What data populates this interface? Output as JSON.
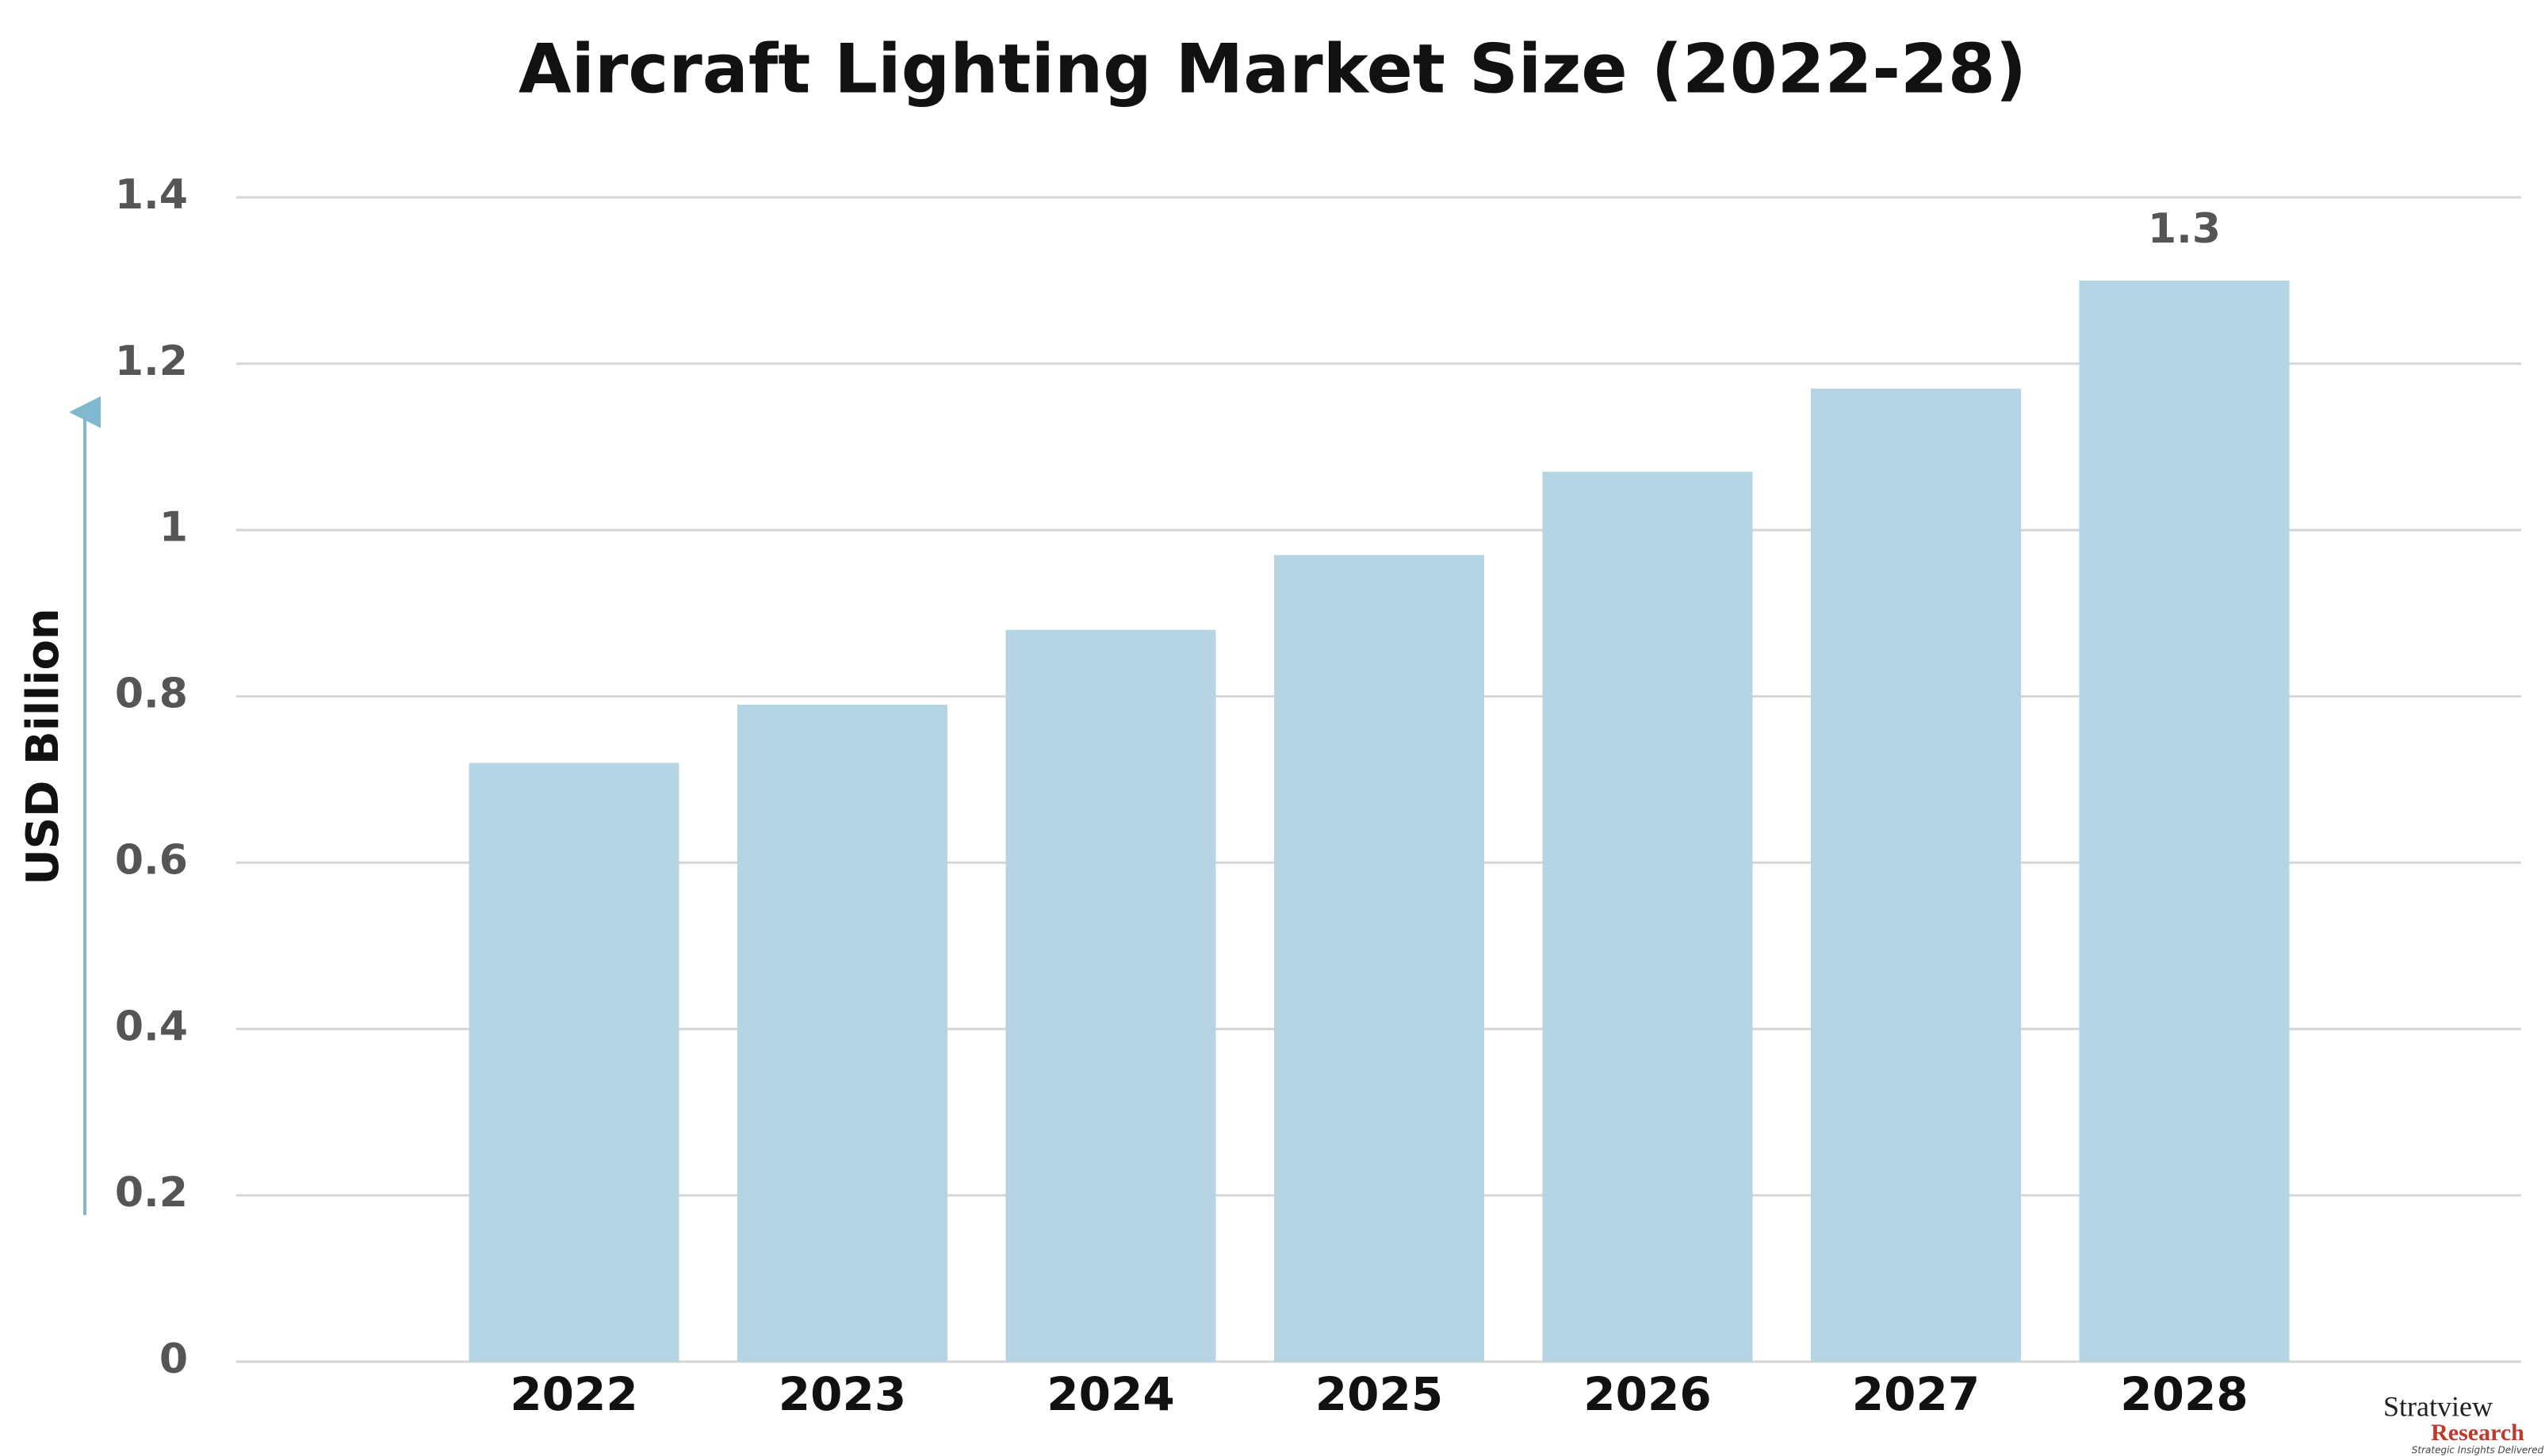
{
  "chart_data": {
    "type": "bar",
    "title": "Aircraft Lighting Market Size (2022-28)",
    "y_label": "USD Billion",
    "categories": [
      "2022",
      "2023",
      "2024",
      "2025",
      "2026",
      "2027",
      "2028"
    ],
    "values": [
      0.72,
      0.79,
      0.88,
      0.97,
      1.07,
      1.17,
      1.3
    ],
    "value_labels": [
      null,
      null,
      null,
      null,
      null,
      null,
      "1.3"
    ],
    "color": "#b5d5e5",
    "ylim": [
      0,
      1.4
    ],
    "yticks": [
      0,
      0.2,
      0.4,
      0.6,
      0.8,
      1,
      1.2,
      1.4
    ],
    "grid": true
  },
  "logo": {
    "name": "Stratview",
    "sub": "Research",
    "tagline": "Strategic Insights Delivered"
  }
}
